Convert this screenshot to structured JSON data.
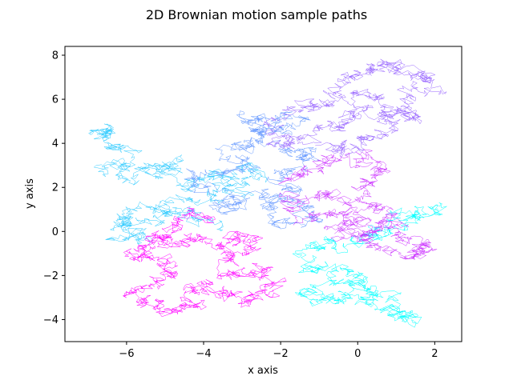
{
  "chart_data": {
    "type": "line",
    "title": "2D Brownian motion sample paths",
    "xlabel": "x axis",
    "ylabel": "y axis",
    "xlim": [
      -7.6,
      2.7
    ],
    "ylim": [
      -5.0,
      8.4
    ],
    "xticks": [
      -6,
      -4,
      -2,
      0,
      2
    ],
    "yticks": [
      -4,
      -2,
      0,
      2,
      4,
      6,
      8
    ],
    "xtick_labels": [
      "−6",
      "−4",
      "−2",
      "0",
      "2"
    ],
    "ytick_labels": [
      "−4",
      "−2",
      "0",
      "2",
      "4",
      "6",
      "8"
    ],
    "grid": false,
    "legend": "none",
    "colormap": "cool",
    "series": [
      {
        "color": "#00ffff",
        "points": [
          [
            0.2,
            -0.1
          ],
          [
            0.8,
            0.3
          ],
          [
            1.6,
            0.8
          ],
          [
            2.1,
            0.9
          ],
          [
            1.2,
            0.5
          ],
          [
            0.5,
            -0.2
          ],
          [
            -0.2,
            -0.4
          ],
          [
            -0.9,
            -0.6
          ],
          [
            -1.6,
            -1.0
          ],
          [
            -1.2,
            -1.8
          ],
          [
            -0.4,
            -1.5
          ],
          [
            0.1,
            -2.2
          ],
          [
            -0.3,
            -2.9
          ],
          [
            0.4,
            -3.2
          ],
          [
            1.0,
            -3.6
          ],
          [
            1.4,
            -4.0
          ],
          [
            0.9,
            -3.3
          ],
          [
            0.3,
            -2.6
          ],
          [
            -0.6,
            -2.3
          ],
          [
            -1.4,
            -2.6
          ],
          [
            -1.0,
            -3.1
          ],
          [
            -0.2,
            -3.0
          ]
        ]
      },
      {
        "color": "#33ccff",
        "points": [
          [
            -6.9,
            4.4
          ],
          [
            -6.4,
            4.7
          ],
          [
            -6.7,
            4.2
          ],
          [
            -6.2,
            3.8
          ],
          [
            -5.8,
            3.4
          ],
          [
            -6.5,
            2.8
          ],
          [
            -5.9,
            2.3
          ],
          [
            -5.2,
            2.9
          ],
          [
            -4.8,
            3.2
          ],
          [
            -5.3,
            2.5
          ],
          [
            -4.6,
            2.1
          ],
          [
            -3.9,
            2.5
          ],
          [
            -3.4,
            2.2
          ],
          [
            -3.0,
            2.8
          ],
          [
            -2.6,
            2.4
          ],
          [
            -3.2,
            1.9
          ],
          [
            -3.8,
            1.6
          ],
          [
            -4.5,
            1.3
          ],
          [
            -5.2,
            1.0
          ],
          [
            -5.9,
            0.7
          ],
          [
            -6.2,
            0.2
          ],
          [
            -5.5,
            -0.2
          ],
          [
            -6.3,
            -0.4
          ],
          [
            -5.6,
            0.5
          ],
          [
            -4.9,
            0.9
          ],
          [
            -4.2,
            0.6
          ],
          [
            -3.5,
            0.3
          ]
        ]
      },
      {
        "color": "#6699ff",
        "points": [
          [
            -3.6,
            0.9
          ],
          [
            -3.1,
            1.3
          ],
          [
            -2.5,
            1.7
          ],
          [
            -1.9,
            1.4
          ],
          [
            -2.3,
            0.8
          ],
          [
            -1.7,
            0.4
          ],
          [
            -1.2,
            0.9
          ],
          [
            -1.5,
            1.7
          ],
          [
            -2.0,
            2.3
          ],
          [
            -1.6,
            2.9
          ],
          [
            -1.2,
            3.4
          ],
          [
            -1.9,
            3.8
          ],
          [
            -2.5,
            4.2
          ],
          [
            -2.0,
            4.7
          ],
          [
            -1.5,
            5.0
          ],
          [
            -2.4,
            5.2
          ],
          [
            -2.9,
            5.1
          ],
          [
            -2.2,
            4.6
          ],
          [
            -2.8,
            4.0
          ],
          [
            -3.3,
            3.7
          ],
          [
            -2.9,
            3.2
          ],
          [
            -3.5,
            2.7
          ],
          [
            -4.1,
            2.4
          ],
          [
            -3.6,
            1.8
          ],
          [
            -3.1,
            1.0
          ]
        ]
      },
      {
        "color": "#9966ff",
        "points": [
          [
            -0.8,
            6.3
          ],
          [
            -0.3,
            6.8
          ],
          [
            0.2,
            7.3
          ],
          [
            0.7,
            7.7
          ],
          [
            1.3,
            7.3
          ],
          [
            1.8,
            7.1
          ],
          [
            1.9,
            6.5
          ],
          [
            1.4,
            6.2
          ],
          [
            1.1,
            5.6
          ],
          [
            1.5,
            5.0
          ],
          [
            0.8,
            5.3
          ],
          [
            0.2,
            5.7
          ],
          [
            -0.3,
            5.1
          ],
          [
            -0.9,
            4.7
          ],
          [
            -1.4,
            4.3
          ],
          [
            -1.9,
            4.0
          ],
          [
            -2.4,
            4.5
          ],
          [
            -1.8,
            5.5
          ],
          [
            -1.3,
            6.0
          ],
          [
            -0.6,
            5.9
          ],
          [
            0.0,
            6.3
          ],
          [
            0.6,
            6.0
          ],
          [
            0.9,
            4.8
          ],
          [
            0.5,
            4.3
          ],
          [
            0.1,
            3.8
          ],
          [
            -0.5,
            3.6
          ],
          [
            -1.1,
            3.9
          ]
        ]
      },
      {
        "color": "#cc33ff",
        "points": [
          [
            -1.9,
            2.4
          ],
          [
            -1.3,
            2.8
          ],
          [
            -0.8,
            3.1
          ],
          [
            -0.2,
            3.0
          ],
          [
            0.4,
            3.3
          ],
          [
            0.6,
            2.6
          ],
          [
            0.2,
            2.0
          ],
          [
            -0.4,
            1.5
          ],
          [
            -1.0,
            1.8
          ],
          [
            -1.6,
            1.3
          ],
          [
            -1.3,
            0.6
          ],
          [
            -0.7,
            0.9
          ],
          [
            -0.1,
            0.6
          ],
          [
            0.4,
            1.2
          ],
          [
            0.9,
            0.7
          ],
          [
            0.6,
            0.0
          ],
          [
            0.1,
            -0.3
          ],
          [
            -0.4,
            0.2
          ],
          [
            0.3,
            0.6
          ],
          [
            0.9,
            -0.2
          ],
          [
            1.5,
            -0.6
          ],
          [
            1.9,
            -0.7
          ],
          [
            1.3,
            -1.1
          ],
          [
            0.8,
            -0.7
          ],
          [
            0.2,
            -0.4
          ],
          [
            -0.6,
            -0.1
          ]
        ]
      },
      {
        "color": "#ff00ff",
        "points": [
          [
            -5.7,
            -0.8
          ],
          [
            -5.1,
            -0.3
          ],
          [
            -4.6,
            -0.7
          ],
          [
            -4.1,
            -0.2
          ],
          [
            -3.6,
            -0.5
          ],
          [
            -3.1,
            -0.1
          ],
          [
            -2.6,
            -0.5
          ],
          [
            -3.0,
            -1.1
          ],
          [
            -3.6,
            -1.5
          ],
          [
            -3.1,
            -2.0
          ],
          [
            -2.5,
            -1.8
          ],
          [
            -2.0,
            -2.2
          ],
          [
            -2.4,
            -2.8
          ],
          [
            -3.0,
            -3.2
          ],
          [
            -3.5,
            -2.8
          ],
          [
            -4.0,
            -2.5
          ],
          [
            -4.5,
            -2.8
          ],
          [
            -4.2,
            -3.4
          ],
          [
            -4.8,
            -3.7
          ],
          [
            -5.3,
            -3.4
          ],
          [
            -5.8,
            -2.8
          ],
          [
            -5.2,
            -2.3
          ],
          [
            -4.7,
            -1.8
          ],
          [
            -5.2,
            -1.3
          ],
          [
            -5.9,
            -1.0
          ],
          [
            -5.3,
            -0.6
          ],
          [
            -4.9,
            0.2
          ],
          [
            -4.3,
            1.0
          ],
          [
            -3.9,
            0.6
          ]
        ]
      }
    ]
  }
}
